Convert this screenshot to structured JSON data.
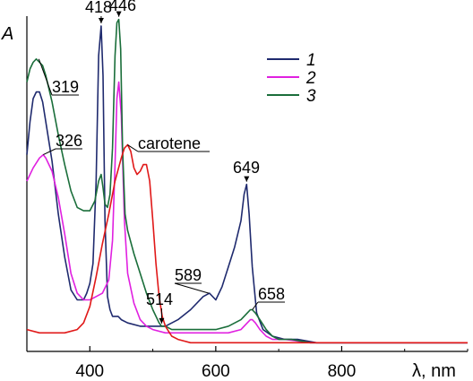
{
  "chart_data": {
    "type": "line",
    "xlabel": "λ, nm",
    "ylabel": "A",
    "xlim": [
      300,
      1000
    ],
    "ylim": [
      0,
      1
    ],
    "x_ticks": [
      400,
      600,
      800
    ],
    "x_tick_labels": [
      "400",
      "600",
      "800"
    ],
    "grid": false,
    "legend_position": "top-right",
    "series": [
      {
        "name": "1",
        "color": "#1f2a6e",
        "x": [
          300,
          305,
          310,
          315,
          320,
          325,
          330,
          340,
          350,
          360,
          370,
          380,
          390,
          395,
          400,
          405,
          410,
          414,
          418,
          421,
          424,
          428,
          432,
          436,
          440,
          445,
          450,
          460,
          480,
          500,
          520,
          540,
          560,
          580,
          590,
          600,
          610,
          620,
          630,
          640,
          645,
          649,
          653,
          658,
          665,
          675,
          690,
          710,
          730,
          760,
          800,
          850,
          900,
          950,
          1000
        ],
        "y": [
          0.58,
          0.68,
          0.75,
          0.77,
          0.77,
          0.74,
          0.68,
          0.56,
          0.4,
          0.27,
          0.17,
          0.14,
          0.14,
          0.16,
          0.19,
          0.25,
          0.5,
          0.88,
          0.97,
          0.82,
          0.38,
          0.15,
          0.11,
          0.09,
          0.09,
          0.09,
          0.08,
          0.07,
          0.06,
          0.06,
          0.06,
          0.08,
          0.11,
          0.15,
          0.16,
          0.14,
          0.18,
          0.24,
          0.3,
          0.38,
          0.46,
          0.49,
          0.4,
          0.24,
          0.1,
          0.05,
          0.03,
          0.02,
          0.02,
          0.01,
          0.01,
          0.01,
          0.01,
          0.01,
          0.01
        ]
      },
      {
        "name": "2",
        "color": "#e020e0",
        "x": [
          300,
          310,
          320,
          326,
          330,
          340,
          350,
          360,
          370,
          380,
          390,
          400,
          410,
          420,
          430,
          436,
          440,
          443,
          446,
          450,
          455,
          460,
          470,
          480,
          490,
          500,
          520,
          540,
          560,
          580,
          600,
          620,
          640,
          650,
          655,
          658,
          663,
          670,
          680,
          690,
          710,
          750,
          800,
          900,
          1000
        ],
        "y": [
          0.5,
          0.54,
          0.57,
          0.58,
          0.57,
          0.53,
          0.45,
          0.34,
          0.22,
          0.16,
          0.14,
          0.14,
          0.15,
          0.16,
          0.2,
          0.32,
          0.55,
          0.75,
          0.8,
          0.7,
          0.38,
          0.22,
          0.13,
          0.08,
          0.06,
          0.05,
          0.04,
          0.04,
          0.04,
          0.04,
          0.04,
          0.04,
          0.05,
          0.07,
          0.08,
          0.08,
          0.07,
          0.05,
          0.03,
          0.02,
          0.02,
          0.01,
          0.01,
          0.01,
          0.01
        ]
      },
      {
        "name": "3",
        "color": "#1a6e3a",
        "x": [
          300,
          305,
          310,
          315,
          320,
          325,
          330,
          340,
          350,
          360,
          370,
          380,
          390,
          400,
          408,
          414,
          418,
          421,
          424,
          428,
          432,
          436,
          440,
          443,
          446,
          449,
          452,
          456,
          460,
          470,
          480,
          490,
          500,
          510,
          514,
          520,
          530,
          540,
          560,
          580,
          600,
          620,
          640,
          650,
          655,
          658,
          663,
          670,
          680,
          690,
          700,
          720,
          750,
          800,
          900,
          1000
        ],
        "y": [
          0.8,
          0.84,
          0.86,
          0.87,
          0.86,
          0.85,
          0.82,
          0.74,
          0.64,
          0.55,
          0.47,
          0.42,
          0.41,
          0.41,
          0.44,
          0.5,
          0.52,
          0.48,
          0.43,
          0.42,
          0.46,
          0.6,
          0.88,
          0.98,
          0.99,
          0.9,
          0.6,
          0.4,
          0.35,
          0.28,
          0.22,
          0.16,
          0.11,
          0.07,
          0.06,
          0.06,
          0.05,
          0.05,
          0.05,
          0.05,
          0.05,
          0.06,
          0.08,
          0.1,
          0.11,
          0.11,
          0.1,
          0.08,
          0.05,
          0.03,
          0.02,
          0.02,
          0.01,
          0.01,
          0.01,
          0.01
        ]
      },
      {
        "name": "carotene",
        "color": "#e01818",
        "x": [
          300,
          320,
          340,
          360,
          380,
          390,
          400,
          410,
          420,
          430,
          440,
          450,
          455,
          460,
          465,
          470,
          475,
          480,
          485,
          490,
          495,
          500,
          505,
          510,
          515,
          520,
          530,
          540,
          560,
          580,
          600,
          650,
          700,
          800,
          900,
          1000
        ],
        "y": [
          0.05,
          0.04,
          0.04,
          0.04,
          0.05,
          0.07,
          0.12,
          0.21,
          0.31,
          0.4,
          0.5,
          0.57,
          0.6,
          0.61,
          0.59,
          0.54,
          0.52,
          0.53,
          0.55,
          0.55,
          0.5,
          0.38,
          0.25,
          0.15,
          0.09,
          0.06,
          0.03,
          0.02,
          0.01,
          0.01,
          0.01,
          0.01,
          0.01,
          0.01,
          0.01,
          0.01
        ]
      }
    ],
    "annotations": [
      {
        "text": "418",
        "x": 418,
        "y": 0.97
      },
      {
        "text": "446",
        "x": 446,
        "y": 0.99
      },
      {
        "text": "319",
        "x": 319,
        "y": 0.87
      },
      {
        "text": "326",
        "x": 326,
        "y": 0.58
      },
      {
        "text": "carotene",
        "x": 460,
        "y": 0.61
      },
      {
        "text": "649",
        "x": 649,
        "y": 0.49
      },
      {
        "text": "589",
        "x": 589,
        "y": 0.16
      },
      {
        "text": "514",
        "x": 514,
        "y": 0.06
      },
      {
        "text": "658",
        "x": 658,
        "y": 0.11
      }
    ]
  }
}
